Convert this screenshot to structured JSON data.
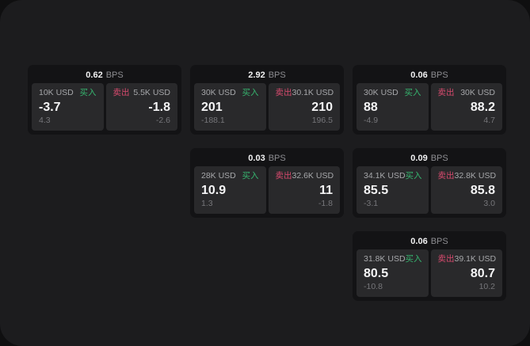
{
  "labels": {
    "buy": "买入",
    "sell": "卖出",
    "bps": "BPS"
  },
  "colors": {
    "buy_green": "#36b56f",
    "sell_red": "#d84a6e",
    "window_bg": "#1c1c1e",
    "card_bg": "#131315",
    "panel_bg": "#29292b"
  },
  "cards": [
    {
      "bps": "0.62",
      "grid": {
        "col": 0,
        "row": 0
      },
      "buy": {
        "amount": "10K USD",
        "value": "-3.7",
        "sub": "4.3"
      },
      "sell": {
        "amount": "5.5K USD",
        "value": "-1.8",
        "sub": "-2.6"
      }
    },
    {
      "bps": "2.92",
      "grid": {
        "col": 1,
        "row": 0
      },
      "buy": {
        "amount": "30K USD",
        "value": "201",
        "sub": "-188.1"
      },
      "sell": {
        "amount": "30.1K USD",
        "value": "210",
        "sub": "196.5"
      }
    },
    {
      "bps": "0.06",
      "grid": {
        "col": 2,
        "row": 0
      },
      "buy": {
        "amount": "30K USD",
        "value": "88",
        "sub": "-4.9"
      },
      "sell": {
        "amount": "30K USD",
        "value": "88.2",
        "sub": "4.7"
      }
    },
    {
      "bps": "0.03",
      "grid": {
        "col": 1,
        "row": 1
      },
      "buy": {
        "amount": "28K USD",
        "value": "10.9",
        "sub": "1.3"
      },
      "sell": {
        "amount": "32.6K USD",
        "value": "11",
        "sub": "-1.8"
      }
    },
    {
      "bps": "0.09",
      "grid": {
        "col": 2,
        "row": 1
      },
      "buy": {
        "amount": "34.1K USD",
        "value": "85.5",
        "sub": "-3.1"
      },
      "sell": {
        "amount": "32.8K USD",
        "value": "85.8",
        "sub": "3.0"
      }
    },
    {
      "bps": "0.06",
      "grid": {
        "col": 2,
        "row": 2
      },
      "buy": {
        "amount": "31.8K USD",
        "value": "80.5",
        "sub": "-10.8"
      },
      "sell": {
        "amount": "39.1K USD",
        "value": "80.7",
        "sub": "10.2"
      }
    }
  ]
}
